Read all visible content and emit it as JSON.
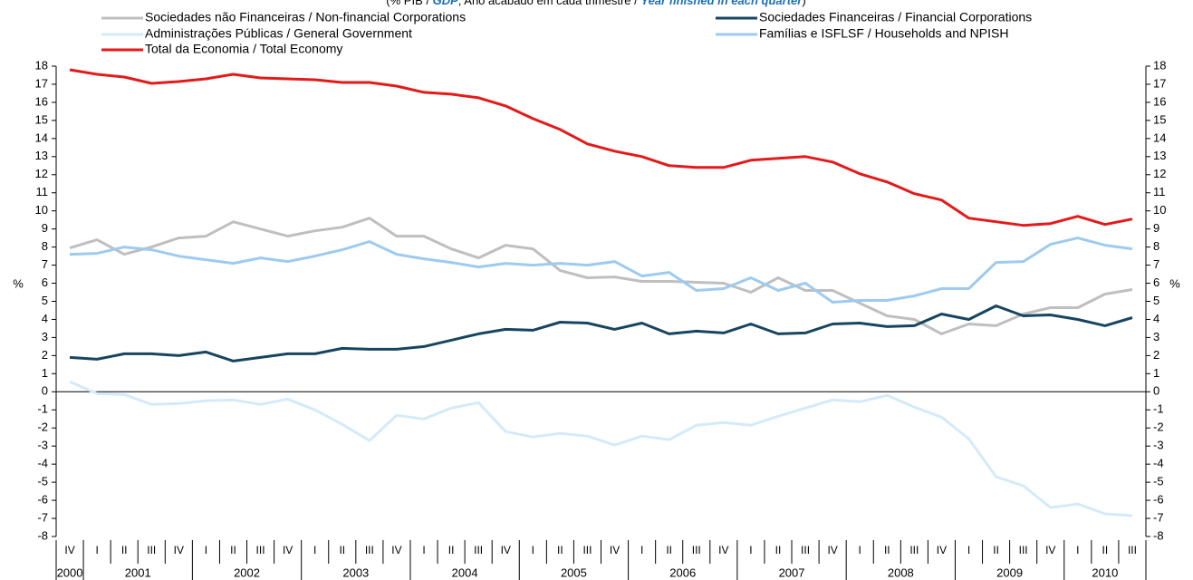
{
  "chart_data": {
    "type": "line",
    "subtitle_parts": [
      "(% PIB / ",
      "GDP",
      "; Ano acabado em cada trimestre / ",
      "Year finished in each quarter",
      ")"
    ],
    "y_label": "%",
    "year_groups": [
      {
        "label": "2000",
        "quarters": [
          "IV"
        ]
      },
      {
        "label": "2001",
        "quarters": [
          "I",
          "II",
          "III",
          "IV"
        ]
      },
      {
        "label": "2002",
        "quarters": [
          "I",
          "II",
          "III",
          "IV"
        ]
      },
      {
        "label": "2003",
        "quarters": [
          "I",
          "II",
          "III",
          "IV"
        ]
      },
      {
        "label": "2004",
        "quarters": [
          "I",
          "II",
          "III",
          "IV"
        ]
      },
      {
        "label": "2005",
        "quarters": [
          "I",
          "II",
          "III",
          "IV"
        ]
      },
      {
        "label": "2006",
        "quarters": [
          "I",
          "II",
          "III",
          "IV"
        ]
      },
      {
        "label": "2007",
        "quarters": [
          "I",
          "II",
          "III",
          "IV"
        ]
      },
      {
        "label": "2008",
        "quarters": [
          "I",
          "II",
          "III",
          "IV"
        ]
      },
      {
        "label": "2009",
        "quarters": [
          "I",
          "II",
          "III",
          "IV"
        ]
      },
      {
        "label": "2010",
        "quarters": [
          "I",
          "II",
          "III"
        ]
      }
    ],
    "ylim": [
      -8,
      18
    ],
    "yticks": [
      -8,
      -7,
      -6,
      -5,
      -4,
      -3,
      -2,
      -1,
      0,
      1,
      2,
      3,
      4,
      5,
      6,
      7,
      8,
      9,
      10,
      11,
      12,
      13,
      14,
      15,
      16,
      17,
      18
    ],
    "series": [
      {
        "name": "Sociedades não Financeiras / Non-financial Corporations",
        "color": "#bfbfbf",
        "values": [
          7.95,
          8.4,
          7.6,
          8.0,
          8.5,
          8.6,
          9.4,
          9.0,
          8.6,
          8.9,
          9.1,
          9.6,
          8.6,
          8.6,
          7.9,
          7.4,
          8.1,
          7.9,
          6.7,
          6.3,
          6.35,
          6.1,
          6.1,
          6.05,
          6.0,
          5.5,
          6.3,
          5.6,
          5.6,
          4.9,
          4.2,
          4.0,
          3.2,
          3.75,
          3.65,
          4.3,
          4.65,
          4.65,
          5.4,
          5.65
        ]
      },
      {
        "name": "Sociedades Financeiras / Financial Corporations",
        "color": "#17455f",
        "values": [
          1.9,
          1.8,
          2.1,
          2.1,
          2.0,
          2.2,
          1.7,
          1.9,
          2.1,
          2.1,
          2.4,
          2.35,
          2.35,
          2.5,
          2.85,
          3.2,
          3.45,
          3.4,
          3.85,
          3.8,
          3.45,
          3.8,
          3.2,
          3.35,
          3.25,
          3.75,
          3.2,
          3.25,
          3.75,
          3.8,
          3.6,
          3.65,
          4.3,
          4.0,
          4.75,
          4.2,
          4.25,
          4.0,
          3.65,
          4.1
        ]
      },
      {
        "name": "Administrações Públicas / General Government",
        "color": "#d3ebf9",
        "values": [
          0.55,
          -0.1,
          -0.15,
          -0.7,
          -0.65,
          -0.5,
          -0.45,
          -0.7,
          -0.4,
          -1.0,
          -1.8,
          -2.7,
          -1.3,
          -1.5,
          -0.9,
          -0.6,
          -2.2,
          -2.5,
          -2.3,
          -2.45,
          -2.95,
          -2.45,
          -2.65,
          -1.85,
          -1.7,
          -1.85,
          -1.35,
          -0.9,
          -0.45,
          -0.55,
          -0.2,
          -0.85,
          -1.4,
          -2.6,
          -4.7,
          -5.2,
          -6.4,
          -6.2,
          -6.75,
          -6.85
        ]
      },
      {
        "name": "Famílias e ISFLSF / Households and NPISH",
        "color": "#9dcbf0",
        "values": [
          7.6,
          7.65,
          8.0,
          7.85,
          7.5,
          7.3,
          7.1,
          7.4,
          7.2,
          7.5,
          7.85,
          8.3,
          7.6,
          7.35,
          7.15,
          6.9,
          7.1,
          7.0,
          7.1,
          7.0,
          7.2,
          6.4,
          6.6,
          5.6,
          5.7,
          6.3,
          5.6,
          6.0,
          4.95,
          5.05,
          5.05,
          5.3,
          5.7,
          5.7,
          7.15,
          7.2,
          8.15,
          8.5,
          8.1,
          7.9
        ]
      },
      {
        "name": "Total da Economia / Total Economy",
        "color": "#e41a1a",
        "values": [
          17.8,
          17.55,
          17.4,
          17.05,
          17.15,
          17.3,
          17.55,
          17.35,
          17.3,
          17.25,
          17.1,
          17.1,
          16.9,
          16.55,
          16.45,
          16.25,
          15.8,
          15.1,
          14.5,
          13.7,
          13.3,
          13.0,
          12.5,
          12.4,
          12.4,
          12.8,
          12.9,
          13.0,
          12.7,
          12.05,
          11.6,
          10.95,
          10.6,
          9.6,
          9.4,
          9.2,
          9.3,
          9.7,
          9.25,
          9.55
        ]
      }
    ]
  }
}
